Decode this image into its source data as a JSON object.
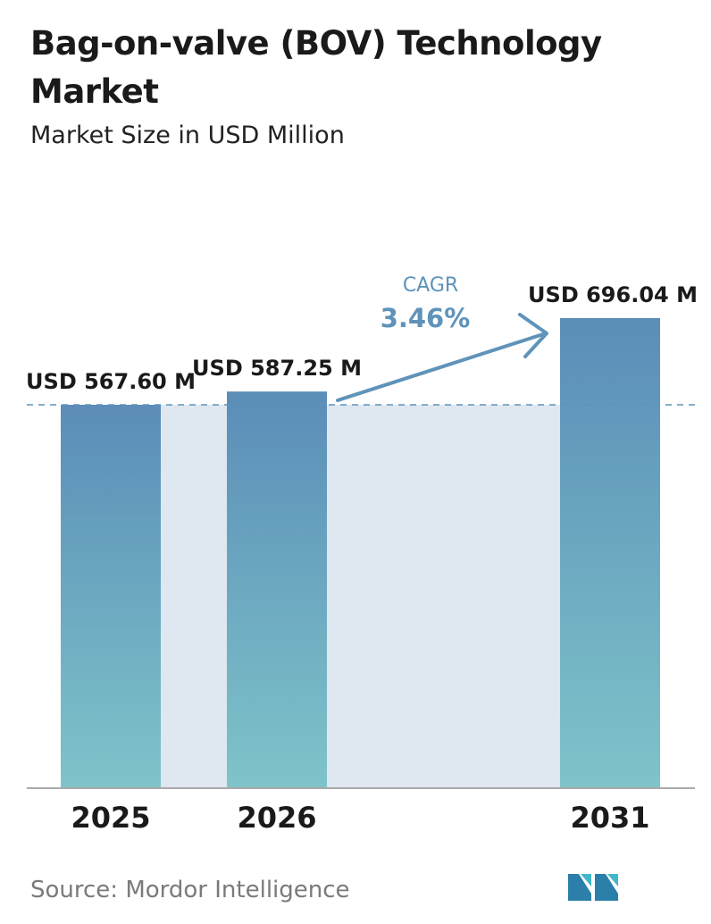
{
  "header": {
    "title": "Bag-on-valve (BOV) Technology Market",
    "subtitle": "Market Size in USD Million"
  },
  "chart_data": {
    "type": "bar",
    "title": "Bag-on-valve (BOV) Technology Market",
    "subtitle": "Market Size in USD Million",
    "categories": [
      "2025",
      "2026",
      "2031"
    ],
    "values": [
      567.6,
      587.25,
      696.04
    ],
    "value_labels": [
      "USD 567.60 M",
      "USD 587.25 M",
      "USD 696.04 M"
    ],
    "unit": "USD Million",
    "cagr": {
      "label": "CAGR",
      "value": "3.46%"
    },
    "reference_line_value": 567.6,
    "grid": false,
    "colors": {
      "bar_top": "#5b8db8",
      "bar_bottom": "#7ec4c9",
      "band": "#dfe7f0",
      "accent": "#5f93b9",
      "axis": "#aaaaaa"
    }
  },
  "footer": {
    "source": "Source:  Mordor Intelligence",
    "logo_icon": "mordor-intelligence-logo-icon"
  }
}
